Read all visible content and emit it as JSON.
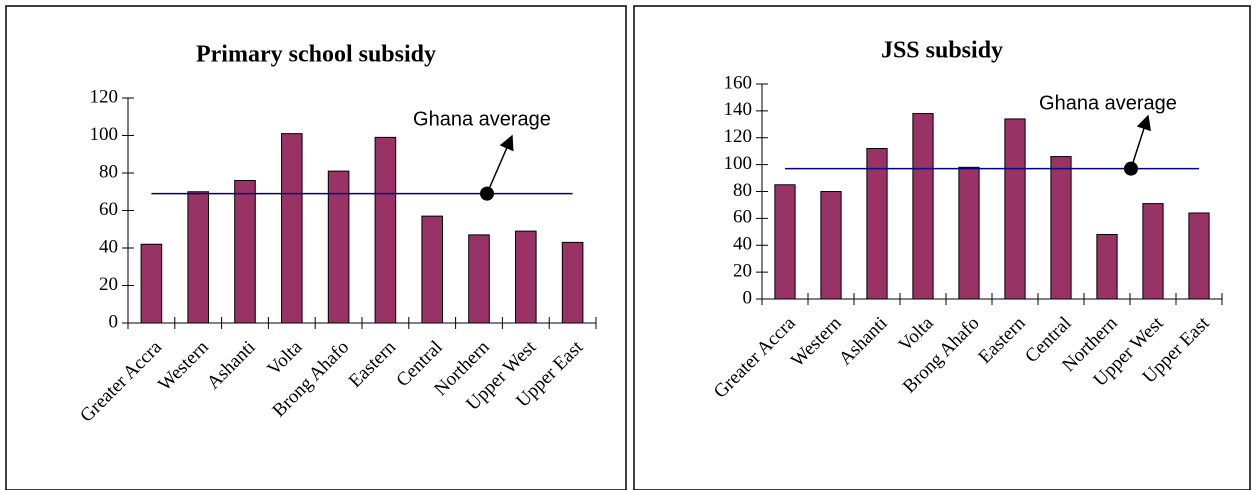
{
  "chart_data": [
    {
      "type": "bar",
      "title": "Primary school subsidy",
      "categories": [
        "Greater Accra",
        "Western",
        "Ashanti",
        "Volta",
        "Brong Ahafo",
        "Eastern",
        "Central",
        "Northern",
        "Upper West",
        "Upper East"
      ],
      "values": [
        42,
        70,
        76,
        101,
        81,
        99,
        57,
        47,
        49,
        43
      ],
      "color": "#993366",
      "ylim": [
        0,
        120
      ],
      "yticks": [
        0,
        20,
        40,
        60,
        80,
        100,
        120
      ],
      "average": 69,
      "average_color": "#000080",
      "annotation": "Ghana average"
    },
    {
      "type": "bar",
      "title": "JSS subsidy",
      "categories": [
        "Greater Accra",
        "Western",
        "Ashanti",
        "Volta",
        "Brong Ahafo",
        "Eastern",
        "Central",
        "Northern",
        "Upper West",
        "Upper East"
      ],
      "values": [
        85,
        80,
        112,
        138,
        98,
        134,
        106,
        48,
        71,
        64
      ],
      "color": "#993366",
      "ylim": [
        0,
        160
      ],
      "yticks": [
        0,
        20,
        40,
        60,
        80,
        100,
        120,
        140,
        160
      ],
      "average": 97,
      "average_color": "#000080",
      "annotation": "Ghana average"
    }
  ]
}
